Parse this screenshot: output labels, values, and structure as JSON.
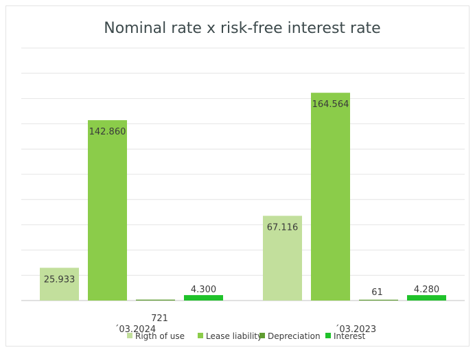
{
  "chart_data": {
    "type": "bar",
    "title": "Nominal rate x risk-free interest rate",
    "xlabel": "",
    "ylabel": "",
    "categories": [
      "´03.2024",
      "´03.2023"
    ],
    "series": [
      {
        "name": "Rigth of use",
        "values": [
          25933,
          67116
        ],
        "labels": [
          "25.933",
          "67.116"
        ],
        "color": "#c2df9c"
      },
      {
        "name": "Lease liability",
        "values": [
          142860,
          164564
        ],
        "labels": [
          "142.860",
          "164.564"
        ],
        "color": "#8bcc4a"
      },
      {
        "name": "Depreciation",
        "values": [
          721,
          61
        ],
        "labels": [
          "721",
          "61"
        ],
        "color": "#5f9c31"
      },
      {
        "name": "Interest",
        "values": [
          4300,
          4280
        ],
        "labels": [
          "4.300",
          "4.280"
        ],
        "color": "#1fc22a"
      }
    ],
    "ylim": [
      0,
      200000
    ],
    "grid": true,
    "legend": "bottom"
  }
}
